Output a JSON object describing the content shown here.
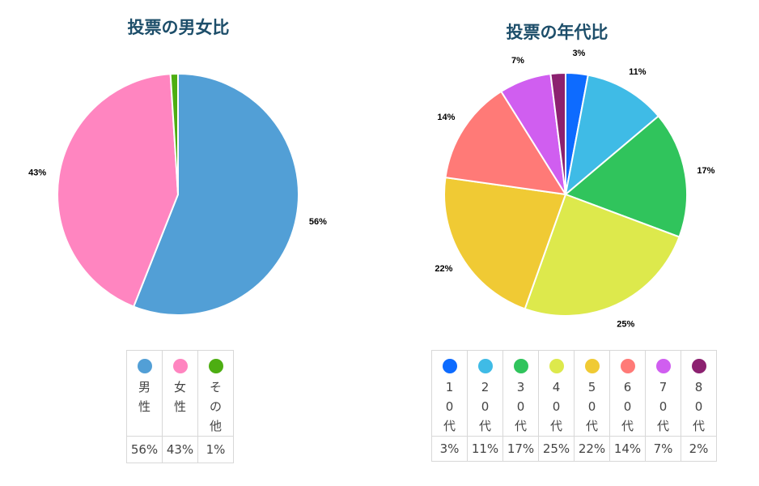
{
  "chart_data": [
    {
      "type": "pie",
      "title": "投票の男女比",
      "slices": [
        {
          "name": "男性",
          "value": 56,
          "label": "56%",
          "color": "#529fd6"
        },
        {
          "name": "女性",
          "value": 43,
          "label": "43%",
          "color": "#ff85c0"
        },
        {
          "name": "その他",
          "value": 1,
          "label": "1%",
          "color": "#4dae12"
        }
      ],
      "legend": {
        "placement": "bottom",
        "style": "table"
      }
    },
    {
      "type": "pie",
      "title": "投票の年代比",
      "slices": [
        {
          "name": "10代",
          "value": 3,
          "label": "3%",
          "color": "#0d6bff"
        },
        {
          "name": "20代",
          "value": 11,
          "label": "11%",
          "color": "#3fbbe6"
        },
        {
          "name": "30代",
          "value": 17,
          "label": "17%",
          "color": "#30c45c"
        },
        {
          "name": "40代",
          "value": 25,
          "label": "25%",
          "color": "#dde94c"
        },
        {
          "name": "50代",
          "value": 22,
          "label": "22%",
          "color": "#f0ca34"
        },
        {
          "name": "60代",
          "value": 14,
          "label": "14%",
          "color": "#ff7a77"
        },
        {
          "name": "70代",
          "value": 7,
          "label": "7%",
          "color": "#d05ef0"
        },
        {
          "name": "80代",
          "value": 2,
          "label": "2%",
          "color": "#8c2170"
        }
      ],
      "legend": {
        "placement": "bottom",
        "style": "table"
      }
    }
  ]
}
